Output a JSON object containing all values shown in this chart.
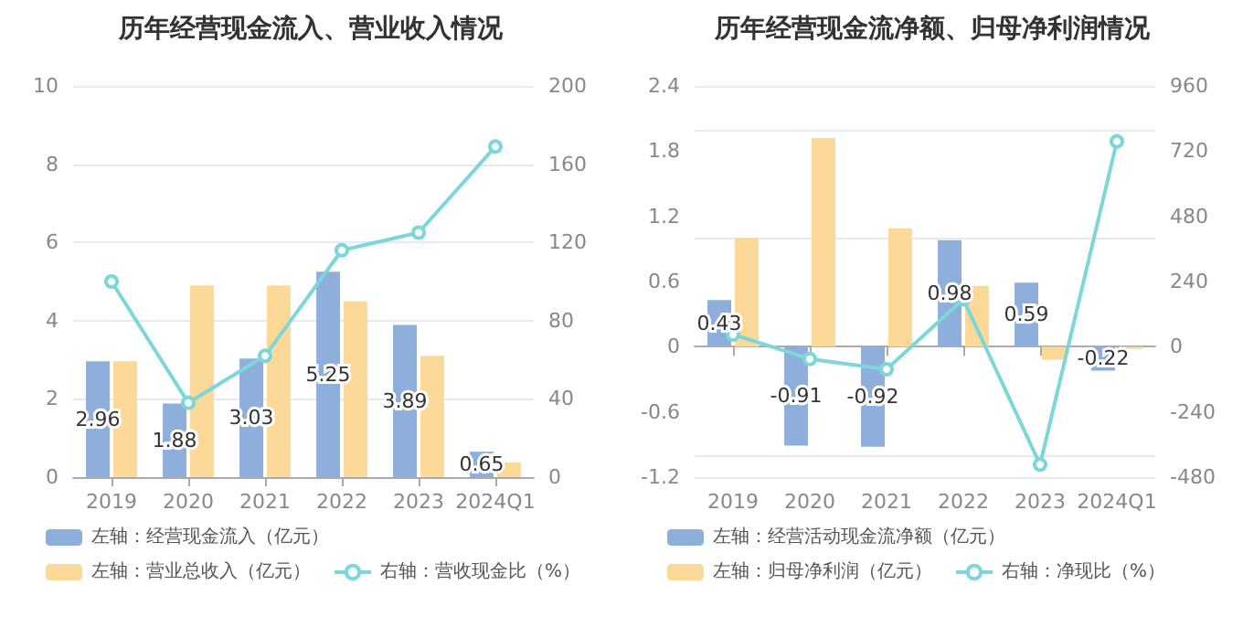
{
  "chart_data": [
    {
      "type": "bar",
      "title": "历年经营现金流入、营业收入情况",
      "categories": [
        "2019",
        "2020",
        "2021",
        "2022",
        "2023",
        "2024Q1"
      ],
      "series": [
        {
          "name": "左轴：经营现金流入（亿元）",
          "color": "#8eaedc",
          "values": [
            2.96,
            1.88,
            3.03,
            5.25,
            3.89,
            0.65
          ],
          "value_labels": [
            "2.96",
            "1.88",
            "3.03",
            "5.25",
            "3.89",
            "0.65"
          ]
        },
        {
          "name": "左轴：营业总收入（亿元）",
          "color": "#fdd999",
          "values": [
            2.96,
            4.9,
            4.9,
            4.5,
            3.1,
            0.38
          ]
        },
        {
          "name": "右轴：营收现金比（%）",
          "type": "line",
          "axis": "y2",
          "color": "#7dd6d8",
          "values": [
            100,
            38,
            62,
            116,
            125,
            169
          ]
        }
      ],
      "ylim": [
        0,
        10
      ],
      "yticks": [
        0,
        2,
        4,
        6,
        8,
        10
      ],
      "y2lim": [
        0,
        200
      ],
      "y2ticks": [
        0,
        40,
        80,
        120,
        160,
        200
      ],
      "grid": "y",
      "legend": "bottom left",
      "marker": "circle"
    },
    {
      "type": "bar",
      "title": "历年经营现金流净额、归母净利润情况",
      "categories": [
        "2019",
        "2020",
        "2021",
        "2022",
        "2023",
        "2024Q1"
      ],
      "series": [
        {
          "name": "左轴：经营活动现金流净额（亿元）",
          "color": "#8eaedc",
          "values": [
            0.43,
            -0.91,
            -0.92,
            0.98,
            0.59,
            -0.22
          ],
          "value_labels": [
            "0.43",
            "-0.91",
            "-0.92",
            "0.98",
            "0.59",
            "-0.22"
          ]
        },
        {
          "name": "左轴：归母净利润（亿元）",
          "color": "#fdd999",
          "values": [
            1.0,
            1.92,
            1.09,
            0.56,
            -0.12,
            -0.02
          ]
        },
        {
          "name": "右轴：净现比（%）",
          "type": "line",
          "axis": "y2",
          "color": "#7dd6d8",
          "values": [
            45,
            -45,
            -83,
            175,
            -434,
            756
          ]
        }
      ],
      "ylim": [
        -1.2,
        2.4
      ],
      "yticks": [
        -1.2,
        -0.6,
        0,
        0.6,
        1.2,
        1.8,
        2.4
      ],
      "y2lim": [
        -480,
        960
      ],
      "y2ticks": [
        -480,
        -240,
        0,
        240,
        480,
        720,
        960
      ],
      "grid": "y",
      "legend": "bottom left",
      "marker": "circle"
    }
  ]
}
